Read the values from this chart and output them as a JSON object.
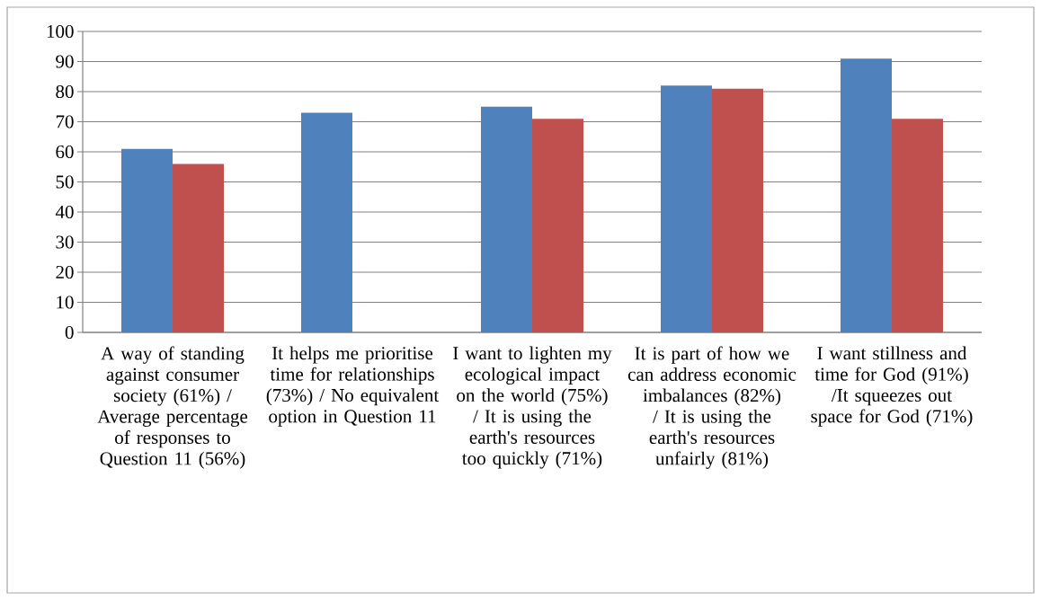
{
  "chart_data": {
    "type": "bar",
    "categories": [
      "A way of standing against consumer society (61%) / Average percentage of responses to Question 11 (56%)",
      "It helps me prioritise time for relationships (73%) / No equivalent option in Question 11",
      "I want to lighten my ecological impact on the world (75%) / It is using the earth's resources too quickly (71%)",
      "It is part of how we can address economic imbalances (82%) / It is using the earth's resources unfairly (81%)",
      "I want stillness and time for God (91%) /It squeezes out space for God (71%)"
    ],
    "series": [
      {
        "color": "#4f81bd",
        "values": [
          61,
          73,
          75,
          82,
          91
        ]
      },
      {
        "color": "#c0504d",
        "values": [
          56,
          null,
          71,
          81,
          71
        ]
      }
    ],
    "ylim": [
      0,
      100
    ],
    "yticks": [
      0,
      10,
      20,
      30,
      40,
      50,
      60,
      70,
      80,
      90,
      100
    ],
    "grid": "y"
  }
}
